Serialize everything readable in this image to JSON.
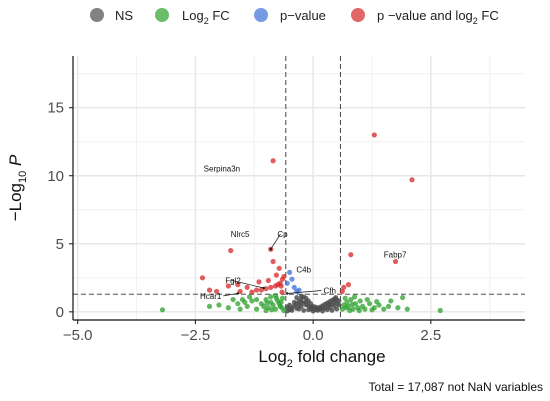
{
  "chart_data": {
    "type": "scatter",
    "title": "",
    "caption": "Total = 17,087 not NaN variables",
    "xlabel": "Log2 fold change",
    "ylabel": "-Log10 P",
    "xlim": [
      -5.1,
      4.5
    ],
    "ylim": [
      -0.6,
      18.8
    ],
    "xticks": [
      -5,
      -2.5,
      0,
      2.5
    ],
    "xtick_labels": [
      "−5.0",
      "−2.5",
      "0.0",
      "2.5"
    ],
    "yticks": [
      0,
      5,
      10,
      15
    ],
    "ytick_labels": [
      "0",
      "5",
      "10",
      "15"
    ],
    "grid": true,
    "legend_position": "top",
    "thresholds": {
      "fc_cutoff": [
        -0.58,
        0.58
      ],
      "p_cutoff": 1.3
    },
    "legend": [
      {
        "key": "ns",
        "label": "NS",
        "color": "#4d4d4d"
      },
      {
        "key": "fc",
        "label": "Log2 FC",
        "color": "#2ca02c"
      },
      {
        "key": "p",
        "label": "p−value",
        "color": "#3b6fd8"
      },
      {
        "key": "both",
        "label": "p −value and log2 FC",
        "color": "#d62728"
      }
    ],
    "series": [
      {
        "key": "ns",
        "points": [
          [
            -0.55,
            0.05
          ],
          [
            -0.5,
            0.15
          ],
          [
            -0.45,
            0.3
          ],
          [
            -0.4,
            0.45
          ],
          [
            -0.35,
            0.6
          ],
          [
            -0.3,
            0.8
          ],
          [
            -0.25,
            0.95
          ],
          [
            -0.2,
            1.1
          ],
          [
            -0.15,
            1.0
          ],
          [
            -0.1,
            0.8
          ],
          [
            -0.05,
            0.6
          ],
          [
            0.0,
            0.4
          ],
          [
            0.05,
            0.35
          ],
          [
            0.1,
            0.3
          ],
          [
            0.15,
            0.35
          ],
          [
            0.2,
            0.45
          ],
          [
            0.25,
            0.55
          ],
          [
            0.3,
            0.65
          ],
          [
            0.35,
            0.75
          ],
          [
            0.4,
            0.85
          ],
          [
            0.45,
            0.95
          ],
          [
            0.5,
            0.9
          ],
          [
            0.55,
            0.8
          ],
          [
            -0.3,
            0.2
          ],
          [
            -0.2,
            0.1
          ],
          [
            -0.1,
            0.15
          ],
          [
            0.0,
            0.05
          ],
          [
            0.1,
            0.1
          ],
          [
            0.2,
            0.05
          ],
          [
            0.3,
            0.15
          ],
          [
            0.4,
            0.1
          ],
          [
            0.5,
            0.2
          ],
          [
            -0.45,
            0.1
          ],
          [
            -0.35,
            0.25
          ],
          [
            -0.25,
            0.4
          ],
          [
            -0.15,
            0.5
          ],
          [
            -0.05,
            0.2
          ],
          [
            0.05,
            0.15
          ],
          [
            0.15,
            0.2
          ],
          [
            0.25,
            0.25
          ],
          [
            0.35,
            0.3
          ],
          [
            0.45,
            0.4
          ],
          [
            -0.5,
            0.5
          ],
          [
            -0.4,
            0.7
          ],
          [
            -0.3,
            0.5
          ],
          [
            -0.2,
            0.65
          ],
          [
            -0.1,
            0.45
          ],
          [
            0.3,
            0.45
          ],
          [
            0.4,
            0.55
          ],
          [
            0.5,
            0.6
          ],
          [
            -0.25,
            0.7
          ],
          [
            -0.15,
            0.75
          ],
          [
            0.35,
            0.5
          ],
          [
            0.45,
            0.7
          ],
          [
            -0.55,
            0.35
          ],
          [
            0.55,
            0.5
          ],
          [
            -0.05,
            0.35
          ],
          [
            0.0,
            0.25
          ],
          [
            0.2,
            0.3
          ],
          [
            0.1,
            0.2
          ],
          [
            -0.35,
            1.05
          ],
          [
            -0.25,
            1.15
          ],
          [
            0.48,
            1.05
          ]
        ]
      },
      {
        "key": "fc",
        "points": [
          [
            -3.2,
            0.15
          ],
          [
            -2.2,
            0.4
          ],
          [
            -2.0,
            0.5
          ],
          [
            -1.8,
            0.3
          ],
          [
            -1.6,
            0.6
          ],
          [
            -1.5,
            0.9
          ],
          [
            -1.4,
            0.4
          ],
          [
            -1.3,
            0.8
          ],
          [
            -1.2,
            0.2
          ],
          [
            -1.1,
            0.6
          ],
          [
            -1.0,
            0.9
          ],
          [
            -0.95,
            0.3
          ],
          [
            -0.9,
            1.1
          ],
          [
            -0.85,
            0.5
          ],
          [
            -0.8,
            0.2
          ],
          [
            -0.75,
            0.8
          ],
          [
            -0.7,
            0.4
          ],
          [
            -0.65,
            1.0
          ],
          [
            -0.62,
            0.1
          ],
          [
            -1.2,
            0.9
          ],
          [
            -1.05,
            0.4
          ],
          [
            -0.9,
            0.7
          ],
          [
            -0.8,
            1.2
          ],
          [
            -0.72,
            0.6
          ],
          [
            -1.7,
            0.9
          ],
          [
            -1.35,
            1.1
          ],
          [
            -1.0,
            0.1
          ],
          [
            -0.68,
            0.7
          ],
          [
            -1.55,
            0.2
          ],
          [
            -0.78,
            1.0
          ],
          [
            -0.88,
            0.15
          ],
          [
            -0.98,
            0.65
          ],
          [
            -1.45,
            0.7
          ],
          [
            -0.66,
            0.3
          ],
          [
            0.62,
            0.2
          ],
          [
            0.65,
            0.5
          ],
          [
            0.7,
            0.3
          ],
          [
            0.72,
            0.7
          ],
          [
            0.75,
            0.4
          ],
          [
            0.8,
            0.9
          ],
          [
            0.85,
            0.2
          ],
          [
            0.9,
            0.6
          ],
          [
            0.95,
            0.3
          ],
          [
            1.0,
            0.8
          ],
          [
            1.05,
            0.4
          ],
          [
            1.1,
            0.2
          ],
          [
            1.2,
            0.6
          ],
          [
            1.3,
            0.3
          ],
          [
            1.4,
            0.5
          ],
          [
            1.5,
            0.2
          ],
          [
            1.6,
            0.4
          ],
          [
            1.8,
            0.3
          ],
          [
            2.0,
            0.2
          ],
          [
            2.7,
            0.1
          ],
          [
            0.68,
            1.0
          ],
          [
            0.78,
            0.1
          ],
          [
            0.88,
            1.1
          ],
          [
            0.98,
            0.1
          ],
          [
            1.15,
            0.9
          ],
          [
            1.25,
            0.15
          ],
          [
            1.65,
            0.8
          ],
          [
            1.9,
            1.05
          ],
          [
            0.83,
            0.55
          ],
          [
            1.35,
            0.75
          ]
        ]
      },
      {
        "key": "p",
        "points": [
          [
            -0.5,
            2.9
          ],
          [
            -0.45,
            2.4
          ],
          [
            -0.4,
            1.8
          ],
          [
            -0.35,
            1.5
          ],
          [
            -0.55,
            2.1
          ],
          [
            -0.3,
            1.6
          ]
        ]
      },
      {
        "key": "both",
        "points": [
          [
            -0.85,
            11.1
          ],
          [
            -1.75,
            4.5
          ],
          [
            -0.9,
            4.6
          ],
          [
            -0.85,
            3.7
          ],
          [
            -0.62,
            2.6
          ],
          [
            -0.65,
            2.4
          ],
          [
            -0.7,
            2.1
          ],
          [
            -0.75,
            2.0
          ],
          [
            -0.8,
            1.9
          ],
          [
            -0.9,
            1.8
          ],
          [
            -1.0,
            1.7
          ],
          [
            -1.1,
            1.6
          ],
          [
            -1.2,
            1.6
          ],
          [
            -1.4,
            1.8
          ],
          [
            -1.6,
            2.0
          ],
          [
            -1.8,
            1.9
          ],
          [
            -2.2,
            1.6
          ],
          [
            -2.35,
            2.5
          ],
          [
            -1.55,
            1.5
          ],
          [
            -1.3,
            1.45
          ],
          [
            -0.95,
            2.3
          ],
          [
            -0.72,
            3.2
          ],
          [
            -0.66,
            1.45
          ],
          [
            -1.15,
            2.2
          ],
          [
            -0.78,
            2.7
          ],
          [
            -2.05,
            1.5
          ],
          [
            -0.68,
            1.9
          ],
          [
            1.3,
            13.0
          ],
          [
            2.1,
            9.7
          ],
          [
            0.8,
            4.2
          ],
          [
            1.75,
            3.7
          ],
          [
            0.62,
            1.5
          ],
          [
            0.65,
            1.8
          ],
          [
            0.75,
            2.0
          ]
        ]
      }
    ],
    "labels": [
      {
        "text": "Serpina3n",
        "x": -0.85,
        "y": 11.1,
        "tx": -1.55,
        "ty": 10.3,
        "arrow": false
      },
      {
        "text": "Nlrc5",
        "x": -1.75,
        "y": 4.5,
        "tx": -1.55,
        "ty": 5.5,
        "arrow": false
      },
      {
        "text": "Cp",
        "x": -0.9,
        "y": 4.6,
        "tx": -0.65,
        "ty": 5.5,
        "arrow": true
      },
      {
        "text": "C4b",
        "x": -0.45,
        "y": 2.4,
        "tx": -0.2,
        "ty": 2.9,
        "arrow": false
      },
      {
        "text": "Fgl2",
        "x": -1.7,
        "y": 2.2,
        "tx": -1.7,
        "ty": 2.1,
        "arrow": true,
        "ax": -1.05,
        "ay": 1.75
      },
      {
        "text": "Cfh",
        "x": -0.55,
        "y": 1.35,
        "tx": 0.22,
        "ty": 1.35,
        "arrow": true
      },
      {
        "text": "Hcar1",
        "x": -1.6,
        "y": 1.35,
        "tx": -1.95,
        "ty": 0.95,
        "arrow": true
      },
      {
        "text": "Fabp7",
        "x": 0.8,
        "y": 4.2,
        "tx": 1.5,
        "ty": 4.0,
        "arrow": false
      }
    ]
  }
}
